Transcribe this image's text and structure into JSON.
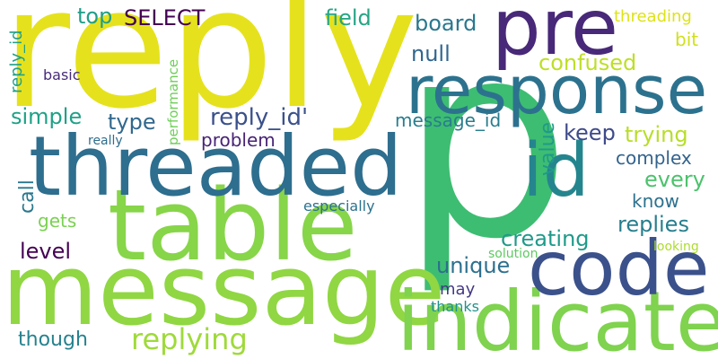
{
  "words": [
    {
      "id": "p",
      "text": "p",
      "color": "#3dbd72"
    },
    {
      "id": "reply",
      "text": "reply",
      "color": "#e5e21d"
    },
    {
      "id": "message",
      "text": "message",
      "color": "#90d743"
    },
    {
      "id": "table",
      "text": "table",
      "color": "#87d549"
    },
    {
      "id": "threaded",
      "text": "threaded",
      "color": "#2e6e8e"
    },
    {
      "id": "indicate",
      "text": "indicate",
      "color": "#7fd34e"
    },
    {
      "id": "response",
      "text": "response",
      "color": "#2c728e"
    },
    {
      "id": "code",
      "text": "code",
      "color": "#3b518b"
    },
    {
      "id": "pre",
      "text": "pre",
      "color": "#482878"
    },
    {
      "id": "id",
      "text": "id",
      "color": "#25858e"
    },
    {
      "id": "replying",
      "text": "replying",
      "color": "#9fda3a"
    },
    {
      "id": "reply_id_q",
      "text": "reply_id'",
      "color": "#3b518b"
    },
    {
      "id": "SELECT",
      "text": "SELECT",
      "color": "#440154"
    },
    {
      "id": "field",
      "text": "field",
      "color": "#25a584"
    },
    {
      "id": "board",
      "text": "board",
      "color": "#2a788e"
    },
    {
      "id": "top",
      "text": "top",
      "color": "#1f9e89"
    },
    {
      "id": "null",
      "text": "null",
      "color": "#31678e"
    },
    {
      "id": "confused",
      "text": "confused",
      "color": "#bddf26"
    },
    {
      "id": "simple",
      "text": "simple",
      "color": "#1fa187"
    },
    {
      "id": "type",
      "text": "type",
      "color": "#31688e"
    },
    {
      "id": "problem",
      "text": "problem",
      "color": "#482475"
    },
    {
      "id": "message_id",
      "text": "message_id",
      "color": "#287d8e"
    },
    {
      "id": "keep",
      "text": "keep",
      "color": "#3e4a89"
    },
    {
      "id": "trying",
      "text": "trying",
      "color": "#b8de29"
    },
    {
      "id": "complex",
      "text": "complex",
      "color": "#33638d"
    },
    {
      "id": "every",
      "text": "every",
      "color": "#4cc26c"
    },
    {
      "id": "know",
      "text": "know",
      "color": "#2d718e"
    },
    {
      "id": "replies",
      "text": "replies",
      "color": "#277f8e"
    },
    {
      "id": "creating",
      "text": "creating",
      "color": "#1f9a8a"
    },
    {
      "id": "unique",
      "text": "unique",
      "color": "#2d708e"
    },
    {
      "id": "gets",
      "text": "gets",
      "color": "#7ad151"
    },
    {
      "id": "level",
      "text": "level",
      "color": "#440154"
    },
    {
      "id": "may",
      "text": "may",
      "color": "#443983"
    },
    {
      "id": "thanks",
      "text": "thanks",
      "color": "#20928c"
    },
    {
      "id": "though",
      "text": "though",
      "color": "#26828e"
    },
    {
      "id": "especially",
      "text": "especially",
      "color": "#2c728e"
    },
    {
      "id": "solution",
      "text": "solution",
      "color": "#5ec962"
    },
    {
      "id": "looking",
      "text": "looking",
      "color": "#addc30"
    },
    {
      "id": "threading",
      "text": "threading",
      "color": "#dde318"
    },
    {
      "id": "bit",
      "text": "bit",
      "color": "#d0e11c"
    },
    {
      "id": "basic",
      "text": "basic",
      "color": "#472c7a"
    },
    {
      "id": "really",
      "text": "really",
      "color": "#2e6f8e"
    },
    {
      "id": "reply_id",
      "text": "reply_id",
      "color": "#1fa088"
    },
    {
      "id": "call",
      "text": "call",
      "color": "#2a788e"
    },
    {
      "id": "value",
      "text": "value",
      "color": "#1f9a8a"
    },
    {
      "id": "performance",
      "text": "performance",
      "color": "#6ece58"
    }
  ]
}
